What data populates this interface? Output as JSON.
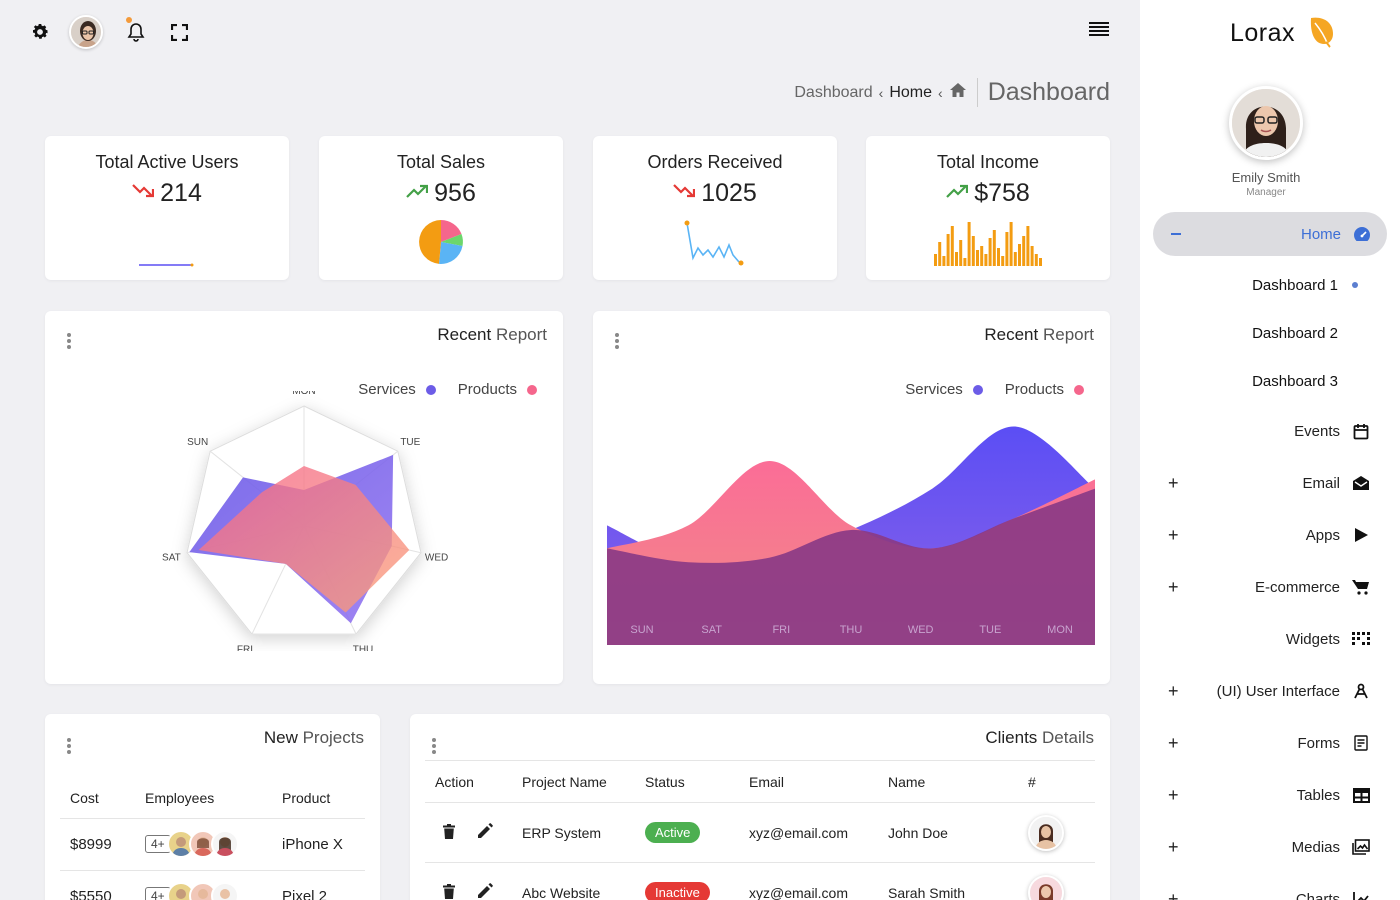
{
  "sidebar": {
    "brand": "Lorax",
    "profile_name": "Emily Smith",
    "profile_role": "Manager",
    "home_label": "Home",
    "sub_items": [
      "Dashboard 1",
      "Dashboard 2",
      "Dashboard 3"
    ],
    "items": [
      {
        "label": "Events",
        "icon": "calendar-icon",
        "expandable": false
      },
      {
        "label": "Email",
        "icon": "email-icon",
        "expandable": true
      },
      {
        "label": "Apps",
        "icon": "apps-play-icon",
        "expandable": true
      },
      {
        "label": "E-commerce",
        "icon": "cart-icon",
        "expandable": true
      },
      {
        "label": "Widgets",
        "icon": "widgets-icon",
        "expandable": false
      },
      {
        "label": "(UI) User Interface",
        "icon": "ui-icon",
        "expandable": true
      },
      {
        "label": "Forms",
        "icon": "forms-icon",
        "expandable": true
      },
      {
        "label": "Tables",
        "icon": "table-icon",
        "expandable": true
      },
      {
        "label": "Medias",
        "icon": "media-icon",
        "expandable": true
      },
      {
        "label": "Charts",
        "icon": "charts-icon",
        "expandable": true
      }
    ]
  },
  "breadcrumb": {
    "first": "Dashboard",
    "second": "Home",
    "title": "Dashboard"
  },
  "stats": [
    {
      "title": "Total Active Users",
      "value": "214",
      "trend": "down"
    },
    {
      "title": "Total Sales",
      "value": "956",
      "trend": "up"
    },
    {
      "title": "Orders Received",
      "value": "1025",
      "trend": "down"
    },
    {
      "title": "Total Income",
      "value": "$758",
      "trend": "up"
    }
  ],
  "colors": {
    "services": "#6c5ce7",
    "products": "#f5668c",
    "down": "#e53935",
    "up": "#43a047",
    "bars": "#f39c12"
  },
  "report_left": {
    "title_a": "Recent ",
    "title_b": "Report",
    "legend": [
      "Services",
      "Products"
    ]
  },
  "report_right": {
    "title_a": "Recent ",
    "title_b": "Report",
    "legend": [
      "Services",
      "Products"
    ]
  },
  "chart_data": [
    {
      "type": "radar",
      "axes": [
        "MON",
        "TUE",
        "WED",
        "THU",
        "FRI",
        "SAT",
        "SUN"
      ],
      "series": [
        {
          "name": "Services",
          "values": [
            30,
            95,
            75,
            90,
            35,
            98,
            65
          ]
        },
        {
          "name": "Products",
          "values": [
            50,
            55,
            90,
            80,
            35,
            90,
            45
          ]
        }
      ]
    },
    {
      "type": "area",
      "categories": [
        "SUN",
        "SAT",
        "FRI",
        "THU",
        "WED",
        "TUE",
        "MON"
      ],
      "series": [
        {
          "name": "Services",
          "values": [
            52,
            36,
            38,
            50,
            68,
            95,
            68
          ]
        },
        {
          "name": "Products",
          "values": [
            42,
            52,
            80,
            52,
            42,
            55,
            72
          ]
        }
      ]
    }
  ],
  "new_projects": {
    "title_a": "New ",
    "title_b": "Projects",
    "headers": [
      "Cost",
      "Employees",
      "Product"
    ],
    "rows": [
      {
        "cost": "$8999",
        "employees": "4+",
        "product": "iPhone X"
      },
      {
        "cost": "$5550",
        "employees": "4+",
        "product": "Pixel 2"
      }
    ]
  },
  "clients": {
    "title_a": "Clients ",
    "title_b": "Details",
    "headers": [
      "Action",
      "Project Name",
      "Status",
      "Email",
      "Name",
      "#"
    ],
    "rows": [
      {
        "project": "ERP System",
        "status": "Active",
        "status_color": "#4caf50",
        "email": "xyz@email.com",
        "name": "John Doe"
      },
      {
        "project": "Abc Website",
        "status": "Inactive",
        "status_color": "#e53935",
        "email": "xyz@email.com",
        "name": "Sarah Smith"
      }
    ]
  }
}
